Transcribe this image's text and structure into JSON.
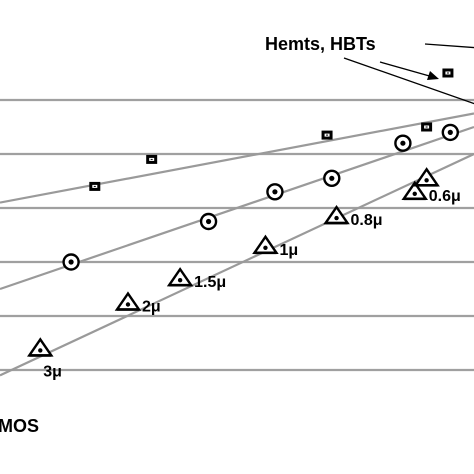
{
  "chart_data": {
    "type": "scatter",
    "title": "",
    "xlabel": "",
    "ylabel": "",
    "grid": true,
    "legend": "none",
    "gridlines_y": [
      1,
      2,
      3,
      4,
      5,
      6
    ],
    "xlim": [
      0,
      100
    ],
    "ylim": [
      0,
      7
    ],
    "series": [
      {
        "marker": "square-dot",
        "points": [
          {
            "x": 20,
            "y": 4.4
          },
          {
            "x": 32,
            "y": 4.9
          },
          {
            "x": 69,
            "y": 5.35
          },
          {
            "x": 90,
            "y": 5.5
          },
          {
            "x": 94.5,
            "y": 6.5
          }
        ],
        "trend": [
          [
            0,
            4.1
          ],
          [
            100,
            5.75
          ]
        ]
      },
      {
        "marker": "circle-dot",
        "points": [
          {
            "x": 15,
            "y": 3.0
          },
          {
            "x": 44,
            "y": 3.75
          },
          {
            "x": 58,
            "y": 4.3
          },
          {
            "x": 70,
            "y": 4.55
          },
          {
            "x": 85,
            "y": 5.2
          },
          {
            "x": 95,
            "y": 5.4
          }
        ],
        "trend": [
          [
            0,
            2.5
          ],
          [
            100,
            5.5
          ]
        ]
      },
      {
        "marker": "triangle-dot",
        "points": [
          {
            "x": 8.5,
            "y": 1.4,
            "label": "3μ"
          },
          {
            "x": 27,
            "y": 2.25,
            "label": "2μ"
          },
          {
            "x": 38,
            "y": 2.7,
            "label": "1.5μ"
          },
          {
            "x": 56,
            "y": 3.3,
            "label": "1μ"
          },
          {
            "x": 71,
            "y": 3.85,
            "label": "0.8μ"
          },
          {
            "x": 87.5,
            "y": 4.3,
            "label": "0.6μ"
          },
          {
            "x": 90,
            "y": 4.55
          }
        ],
        "trend": [
          [
            0,
            0.9
          ],
          [
            100,
            5.0
          ]
        ]
      }
    ],
    "annotations": [
      {
        "text": "Hemts, HBTs",
        "x": 56,
        "y": 6.9
      },
      {
        "text": "MOS",
        "x": 0,
        "y": 0.7
      }
    ]
  }
}
